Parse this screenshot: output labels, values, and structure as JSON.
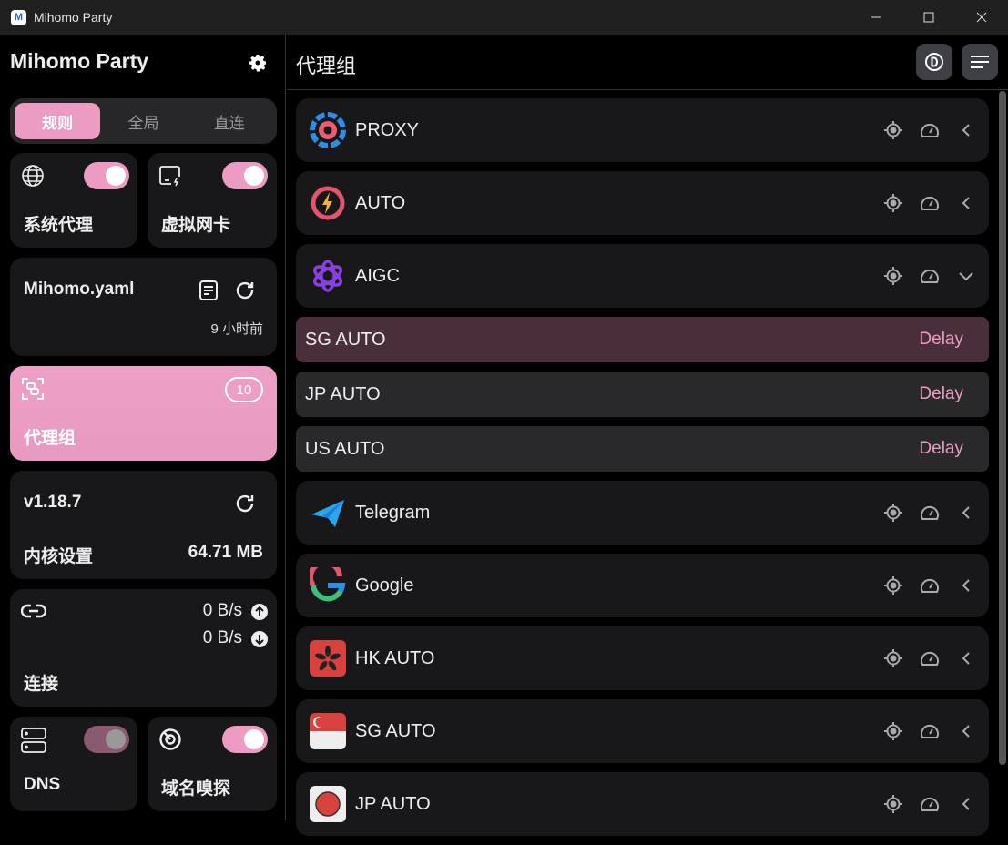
{
  "window": {
    "title": "Mihomo Party"
  },
  "sidebar": {
    "brand": "Mihomo Party",
    "modes": [
      {
        "label": "规则",
        "active": true
      },
      {
        "label": "全局",
        "active": false
      },
      {
        "label": "直连",
        "active": false
      }
    ],
    "system_proxy": {
      "label": "系统代理",
      "enabled": true
    },
    "tun": {
      "label": "虚拟网卡",
      "enabled": true
    },
    "profile": {
      "name": "Mihomo.yaml",
      "updated": "9 小时前"
    },
    "proxy_groups": {
      "label": "代理组",
      "count": "10",
      "selected": true
    },
    "core": {
      "version": "v1.18.7",
      "label": "内核设置",
      "memory": "64.71 MB"
    },
    "connections": {
      "label": "连接",
      "upload": "0 B/s",
      "download": "0 B/s"
    },
    "dns": {
      "label": "DNS",
      "enabled": true,
      "disabled_state": true
    },
    "sniffer": {
      "label": "域名嗅探",
      "enabled": true
    }
  },
  "main": {
    "title": "代理组",
    "groups": [
      {
        "name": "PROXY",
        "icon": "proxy-icon",
        "expanded": false
      },
      {
        "name": "AUTO",
        "icon": "lightning-icon",
        "expanded": false
      },
      {
        "name": "AIGC",
        "icon": "openai-icon",
        "expanded": true,
        "proxies": [
          {
            "name": "SG AUTO",
            "delay": "Delay",
            "active": true
          },
          {
            "name": "JP AUTO",
            "delay": "Delay",
            "active": false
          },
          {
            "name": "US AUTO",
            "delay": "Delay",
            "active": false
          }
        ]
      },
      {
        "name": "Telegram",
        "icon": "telegram-icon",
        "expanded": false
      },
      {
        "name": "Google",
        "icon": "google-icon",
        "expanded": false
      },
      {
        "name": "HK AUTO",
        "icon": "hk-flag-icon",
        "expanded": false
      },
      {
        "name": "SG AUTO",
        "icon": "sg-flag-icon",
        "expanded": false
      },
      {
        "name": "JP AUTO",
        "icon": "jp-flag-icon",
        "expanded": false
      }
    ]
  },
  "colors": {
    "accent": "#ec9cc2",
    "card": "#18181b",
    "active_proxy": "#482f3b"
  }
}
